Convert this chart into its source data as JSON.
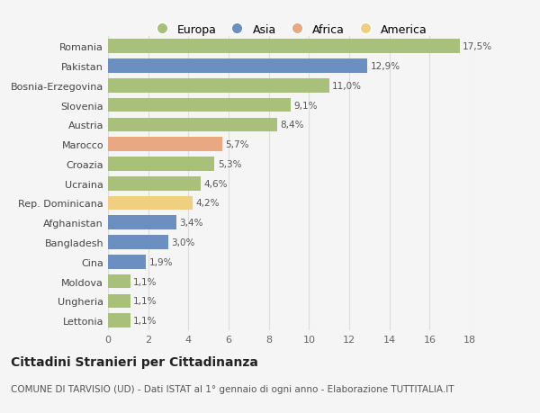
{
  "countries": [
    "Romania",
    "Pakistan",
    "Bosnia-Erzegovina",
    "Slovenia",
    "Austria",
    "Marocco",
    "Croazia",
    "Ucraina",
    "Rep. Dominicana",
    "Afghanistan",
    "Bangladesh",
    "Cina",
    "Moldova",
    "Ungheria",
    "Lettonia"
  ],
  "values": [
    17.5,
    12.9,
    11.0,
    9.1,
    8.4,
    5.7,
    5.3,
    4.6,
    4.2,
    3.4,
    3.0,
    1.9,
    1.1,
    1.1,
    1.1
  ],
  "labels": [
    "17,5%",
    "12,9%",
    "11,0%",
    "9,1%",
    "8,4%",
    "5,7%",
    "5,3%",
    "4,6%",
    "4,2%",
    "3,4%",
    "3,0%",
    "1,9%",
    "1,1%",
    "1,1%",
    "1,1%"
  ],
  "continents": [
    "Europa",
    "Asia",
    "Europa",
    "Europa",
    "Europa",
    "Africa",
    "Europa",
    "Europa",
    "America",
    "Asia",
    "Asia",
    "Asia",
    "Europa",
    "Europa",
    "Europa"
  ],
  "colors": {
    "Europa": "#a8c07a",
    "Asia": "#6a8fc0",
    "Africa": "#e8a882",
    "America": "#f0d080"
  },
  "background_color": "#f5f5f5",
  "title": "Cittadini Stranieri per Cittadinanza",
  "subtitle": "COMUNE DI TARVISIO (UD) - Dati ISTAT al 1° gennaio di ogni anno - Elaborazione TUTTITALIA.IT",
  "xlim": [
    0,
    18
  ],
  "xticks": [
    0,
    2,
    4,
    6,
    8,
    10,
    12,
    14,
    16,
    18
  ],
  "grid_color": "#dddddd",
  "title_fontsize": 10,
  "subtitle_fontsize": 7.5,
  "label_fontsize": 7.5,
  "tick_fontsize": 8,
  "legend_fontsize": 9,
  "bar_height": 0.72
}
